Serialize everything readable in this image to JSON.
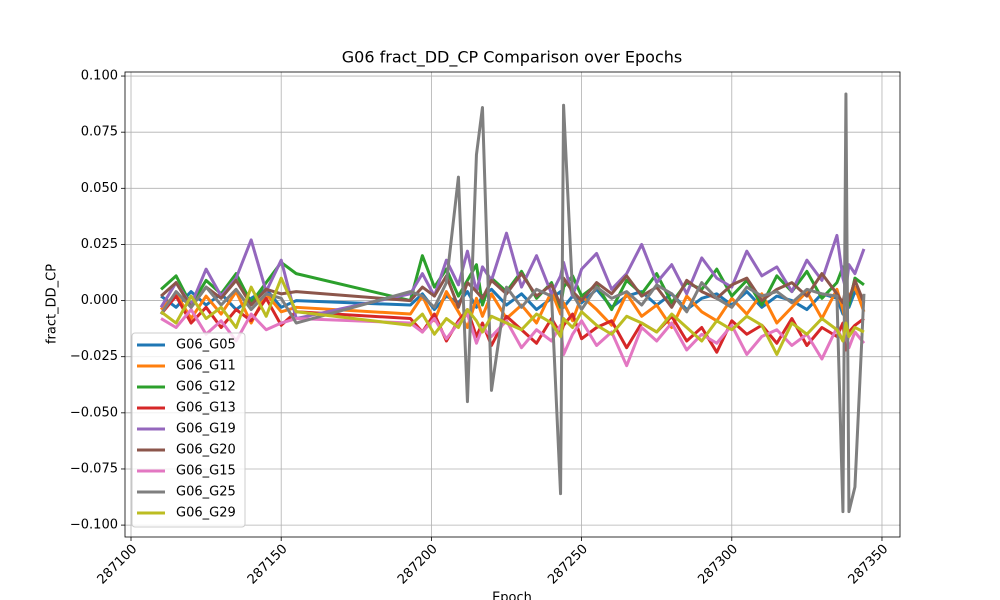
{
  "chart_data": {
    "type": "line",
    "title": "G06 fract_DD_CP Comparison over Epochs",
    "x_label": "Epoch",
    "y_label": "fract_DD_CP",
    "x": [
      287110,
      287115,
      287120,
      287125,
      287130,
      287135,
      287140,
      287145,
      287150,
      287155,
      287193,
      287197,
      287201,
      287205,
      287209,
      287212,
      287215,
      287217,
      287220,
      287225,
      287230,
      287235,
      287240,
      287243,
      287244,
      287247,
      287250,
      287255,
      287260,
      287265,
      287270,
      287275,
      287280,
      287285,
      287290,
      287295,
      287300,
      287305,
      287310,
      287315,
      287320,
      287325,
      287330,
      287335,
      287337,
      287338,
      287339,
      287341,
      287344
    ],
    "xlim": [
      287098,
      287356
    ],
    "xticks": [
      287100,
      287150,
      287200,
      287250,
      287300,
      287350
    ],
    "ylim": [
      -0.1053,
      0.1018
    ],
    "yticks": [
      {
        "value": -0.1,
        "label": "−0.100"
      },
      {
        "value": -0.075,
        "label": "−0.075"
      },
      {
        "value": -0.05,
        "label": "−0.050"
      },
      {
        "value": -0.025,
        "label": "−0.025"
      },
      {
        "value": 0,
        "label": "0.000"
      },
      {
        "value": 0.025,
        "label": "0.025"
      },
      {
        "value": 0.05,
        "label": "0.050"
      },
      {
        "value": 0.075,
        "label": "0.075"
      },
      {
        "value": 0.1,
        "label": "0.100"
      }
    ],
    "grid": true,
    "legend": "lower left",
    "series": [
      {
        "name": "G06_G05",
        "color": "#1f77b4",
        "values": [
          0.002,
          -0.003,
          0.004,
          -0.002,
          0.003,
          -0.004,
          0.001,
          0.005,
          -0.003,
          0.0,
          -0.002,
          0.003,
          -0.004,
          0.002,
          -0.001,
          0.004,
          -0.003,
          0.002,
          0.005,
          -0.002,
          0.003,
          -0.004,
          0.001,
          0.004,
          -0.003,
          0.002,
          -0.001,
          0.005,
          -0.003,
          0.002,
          0.004,
          -0.002,
          0.003,
          -0.004,
          0.001,
          0.003,
          -0.002,
          0.004,
          -0.003,
          0.002,
          0.0,
          -0.004,
          0.003,
          0.001,
          -0.006,
          0.002,
          -0.003,
          0.004,
          0.0
        ]
      },
      {
        "name": "G06_G11",
        "color": "#ff7f0e",
        "values": [
          -0.004,
          0.003,
          -0.008,
          0.002,
          -0.006,
          0.004,
          -0.01,
          0.003,
          -0.005,
          -0.003,
          -0.006,
          0.002,
          -0.009,
          0.004,
          -0.005,
          -0.012,
          0.001,
          -0.007,
          0.003,
          -0.008,
          -0.002,
          -0.01,
          0.004,
          -0.006,
          -0.001,
          -0.009,
          0.002,
          -0.004,
          -0.011,
          0.003,
          -0.007,
          -0.002,
          -0.012,
          0.002,
          -0.005,
          -0.009,
          0.001,
          -0.006,
          0.003,
          -0.01,
          -0.003,
          0.004,
          -0.008,
          0.005,
          -0.004,
          -0.01,
          0.002,
          0.006,
          -0.005
        ]
      },
      {
        "name": "G06_G12",
        "color": "#2ca02c",
        "values": [
          0.005,
          0.011,
          -0.002,
          0.009,
          0.003,
          0.012,
          -0.001,
          0.008,
          0.017,
          0.012,
          0.0,
          0.02,
          0.006,
          0.014,
          0.002,
          0.009,
          0.016,
          -0.002,
          0.01,
          0.004,
          0.013,
          0.001,
          0.008,
          -0.003,
          0.006,
          0.011,
          0.002,
          0.007,
          -0.004,
          0.009,
          0.003,
          0.012,
          -0.001,
          0.008,
          0.005,
          0.014,
          0.002,
          0.009,
          -0.002,
          0.011,
          0.004,
          0.013,
          0.001,
          0.008,
          0.015,
          0.003,
          -0.002,
          0.01,
          0.007
        ]
      },
      {
        "name": "G06_G13",
        "color": "#d62728",
        "values": [
          -0.006,
          0.002,
          -0.01,
          -0.003,
          -0.012,
          -0.004,
          -0.009,
          0.001,
          -0.011,
          -0.005,
          -0.008,
          -0.014,
          -0.006,
          -0.018,
          -0.009,
          -0.004,
          -0.016,
          -0.01,
          -0.02,
          -0.007,
          -0.013,
          -0.019,
          -0.008,
          -0.015,
          -0.011,
          -0.006,
          -0.017,
          -0.012,
          -0.009,
          -0.021,
          -0.01,
          -0.014,
          -0.007,
          -0.018,
          -0.012,
          -0.023,
          -0.009,
          -0.015,
          -0.011,
          -0.019,
          -0.008,
          -0.02,
          -0.012,
          -0.016,
          -0.01,
          -0.022,
          -0.014,
          -0.011,
          -0.008
        ]
      },
      {
        "name": "G06_G19",
        "color": "#9467bd",
        "values": [
          -0.003,
          0.008,
          -0.002,
          0.014,
          0.002,
          0.01,
          0.027,
          0.004,
          0.018,
          -0.008,
          0.003,
          0.012,
          0.002,
          0.018,
          0.007,
          0.022,
          0.004,
          0.015,
          0.009,
          0.03,
          0.006,
          0.02,
          0.003,
          0.011,
          0.017,
          0.002,
          0.014,
          0.021,
          0.005,
          0.012,
          0.025,
          0.008,
          0.016,
          0.003,
          0.019,
          0.01,
          0.006,
          0.022,
          0.011,
          0.015,
          0.004,
          0.018,
          0.009,
          0.029,
          0.01,
          0.005,
          0.016,
          0.012,
          0.023
        ]
      },
      {
        "name": "G06_G20",
        "color": "#8c564b",
        "values": [
          0.002,
          0.008,
          -0.003,
          0.006,
          0.001,
          0.009,
          -0.002,
          0.005,
          0.003,
          0.004,
          0.0,
          0.006,
          0.002,
          0.011,
          -0.003,
          0.008,
          0.004,
          0.001,
          0.009,
          0.003,
          0.012,
          0.002,
          0.007,
          -0.002,
          0.01,
          0.004,
          0.0,
          0.008,
          0.003,
          0.011,
          0.002,
          0.006,
          -0.003,
          0.009,
          0.004,
          0.001,
          0.007,
          0.01,
          0.0,
          0.005,
          0.008,
          0.002,
          0.012,
          0.003,
          -0.001,
          0.006,
          0.0,
          0.009,
          -0.001
        ]
      },
      {
        "name": "G06_G15",
        "color": "#e377c2",
        "values": [
          -0.008,
          -0.012,
          -0.004,
          -0.015,
          -0.009,
          -0.018,
          -0.006,
          -0.013,
          -0.01,
          -0.008,
          -0.01,
          -0.014,
          -0.008,
          -0.017,
          -0.01,
          -0.006,
          -0.019,
          -0.012,
          -0.016,
          -0.009,
          -0.021,
          -0.013,
          -0.018,
          -0.011,
          -0.024,
          -0.015,
          -0.009,
          -0.02,
          -0.014,
          -0.029,
          -0.012,
          -0.018,
          -0.01,
          -0.022,
          -0.015,
          -0.019,
          -0.011,
          -0.024,
          -0.016,
          -0.013,
          -0.02,
          -0.015,
          -0.026,
          -0.012,
          -0.018,
          -0.016,
          -0.021,
          -0.014,
          -0.019
        ]
      },
      {
        "name": "G06_G25",
        "color": "#7f7f7f",
        "values": [
          -0.006,
          0.004,
          -0.003,
          0.006,
          -0.002,
          0.005,
          -0.004,
          0.003,
          0.001,
          -0.01,
          0.004,
          0.002,
          -0.003,
          0.008,
          0.055,
          -0.045,
          0.065,
          0.086,
          -0.04,
          0.006,
          -0.003,
          0.005,
          0.002,
          -0.086,
          0.087,
          0.003,
          -0.004,
          0.006,
          0.001,
          0.004,
          -0.002,
          0.007,
          0.003,
          -0.005,
          0.008,
          0.001,
          -0.003,
          0.006,
          0.002,
          0.004,
          -0.001,
          0.005,
          0.003,
          0.002,
          -0.094,
          0.092,
          -0.094,
          -0.083,
          0.003
        ]
      },
      {
        "name": "G06_G29",
        "color": "#bcbd22",
        "values": [
          -0.005,
          -0.01,
          0.002,
          -0.008,
          -0.003,
          -0.012,
          0.006,
          -0.007,
          0.01,
          -0.005,
          -0.011,
          -0.006,
          -0.015,
          -0.008,
          -0.012,
          -0.004,
          -0.009,
          -0.014,
          -0.007,
          -0.01,
          -0.013,
          -0.006,
          -0.01,
          -0.016,
          -0.008,
          -0.012,
          -0.005,
          -0.011,
          -0.015,
          -0.007,
          -0.01,
          -0.014,
          -0.006,
          -0.012,
          -0.018,
          -0.009,
          -0.013,
          -0.007,
          -0.011,
          -0.024,
          -0.01,
          -0.015,
          -0.008,
          -0.013,
          -0.018,
          -0.01,
          -0.016,
          -0.012,
          -0.014
        ]
      }
    ]
  }
}
